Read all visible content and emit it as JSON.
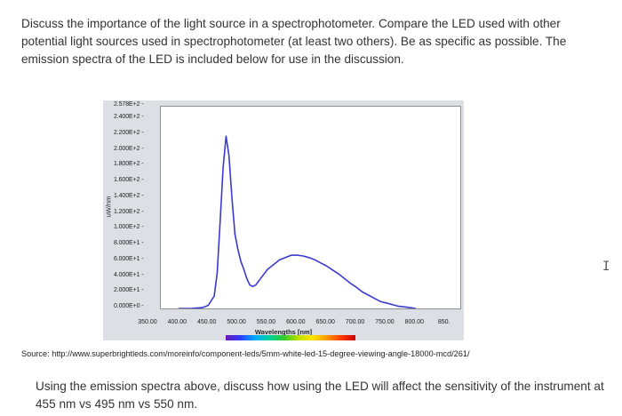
{
  "question": {
    "text": "Discuss the importance of the light source in a spectrophotometer. Compare the LED used with other potential light sources used in spectrophotometer (at least two others). Be as specific as possible. The emission spectra of the LED is included below for use in the discussion."
  },
  "figure": {
    "ylabel": "uW/nm",
    "xlabel": "Wavelengths [nm]",
    "yticks": [
      "2.578E+2",
      "2.400E+2",
      "2.200E+2",
      "2.000E+2",
      "1.800E+2",
      "1.600E+2",
      "1.400E+2",
      "1.200E+2",
      "1.000E+2",
      "8.000E+1",
      "6.000E+1",
      "4.000E+1",
      "2.000E+1",
      "0.000E+0"
    ],
    "xticks": [
      "350.00",
      "400.00",
      "450.00",
      "500.00",
      "550.00",
      "600.00",
      "650.00",
      "700.00",
      "750.00",
      "800.00",
      "850."
    ],
    "line_color": "#3a3ad0"
  },
  "chart_data": {
    "type": "line",
    "xlabel": "Wavelengths [nm]",
    "ylabel": "uW/nm",
    "xlim": [
      350,
      855
    ],
    "ylim": [
      0,
      257.8
    ],
    "series": [
      {
        "x": [
          380,
          400,
          420,
          430,
          440,
          445,
          450,
          455,
          460,
          465,
          470,
          475,
          480,
          485,
          490,
          495,
          500,
          505,
          510,
          520,
          530,
          540,
          550,
          560,
          570,
          580,
          590,
          600,
          610,
          620,
          630,
          640,
          650,
          660,
          670,
          680,
          690,
          700,
          710,
          720,
          730,
          740,
          750,
          760,
          770,
          780
        ],
        "y": [
          0,
          0,
          1,
          4,
          16,
          45,
          110,
          180,
          220,
          195,
          140,
          95,
          75,
          60,
          50,
          38,
          30,
          28,
          30,
          40,
          50,
          56,
          62,
          65,
          68,
          68,
          67,
          65,
          62,
          58,
          54,
          49,
          44,
          38,
          32,
          27,
          21,
          17,
          13,
          9,
          7,
          5,
          3,
          2,
          1,
          0
        ]
      }
    ]
  },
  "source": {
    "text": "Source: http://www.superbrightleds.com/moreinfo/component-leds/5mm-white-led-15-degree-viewing-angle-18000-mcd/261/"
  },
  "question2": {
    "text": "Using the emission spectra above, discuss how using the LED will affect the sensitivity of the instrument at 455 nm vs 495 nm vs 550 nm."
  }
}
